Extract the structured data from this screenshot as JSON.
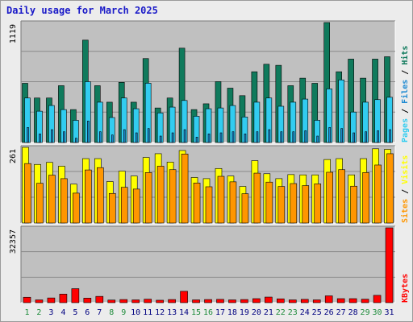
{
  "title": "Daily usage for March 2025",
  "colors": {
    "hits": "#0f7a5c",
    "files": "#32ccf0",
    "pages": "#1e8ad2",
    "visits": "#ffff00",
    "sites": "#ff9600",
    "kbytes": "#ff0000",
    "weekend_day": "#1f8c3c",
    "weekday": "#000080",
    "title": "#1a1ac8",
    "plot_bg": "#c0c0c0"
  },
  "chart_data": [
    {
      "type": "bar",
      "name": "hits-files-pages",
      "y_label": "1119",
      "legend": [
        "Pages",
        "Files",
        "Hits"
      ],
      "ylim": [
        0,
        1119
      ],
      "categories": [
        "1",
        "2",
        "3",
        "4",
        "5",
        "6",
        "7",
        "8",
        "9",
        "10",
        "11",
        "12",
        "13",
        "14",
        "15",
        "16",
        "17",
        "18",
        "19",
        "20",
        "21",
        "22",
        "23",
        "24",
        "25",
        "26",
        "27",
        "28",
        "29",
        "30",
        "31"
      ],
      "series": [
        {
          "name": "Hits",
          "values": [
            552,
            415,
            415,
            530,
            307,
            955,
            530,
            376,
            561,
            376,
            783,
            322,
            415,
            880,
            307,
            361,
            568,
            507,
            437,
            660,
            730,
            720,
            530,
            600,
            552,
            1119,
            660,
            778,
            600,
            778,
            800
          ]
        },
        {
          "name": "Files",
          "values": [
            415,
            292,
            345,
            307,
            207,
            567,
            376,
            233,
            415,
            315,
            553,
            276,
            330,
            392,
            245,
            315,
            322,
            345,
            238,
            376,
            415,
            338,
            376,
            405,
            207,
            500,
            584,
            284,
            376,
            400,
            422
          ]
        },
        {
          "name": "Pages",
          "values": [
            140,
            80,
            120,
            100,
            40,
            200,
            100,
            70,
            120,
            90,
            130,
            60,
            90,
            120,
            50,
            80,
            90,
            100,
            80,
            100,
            120,
            100,
            100,
            110,
            60,
            140,
            130,
            90,
            100,
            110,
            120
          ]
        }
      ]
    },
    {
      "type": "bar",
      "name": "visits-sites",
      "y_label": "261",
      "legend": [
        "Sites",
        "Visits"
      ],
      "ylim": [
        0,
        261
      ],
      "categories": [
        "1",
        "2",
        "3",
        "4",
        "5",
        "6",
        "7",
        "8",
        "9",
        "10",
        "11",
        "12",
        "13",
        "14",
        "15",
        "16",
        "17",
        "18",
        "19",
        "20",
        "21",
        "22",
        "23",
        "24",
        "25",
        "26",
        "27",
        "28",
        "29",
        "30",
        "31"
      ],
      "series": [
        {
          "name": "Visits",
          "values": [
            261,
            202,
            209,
            196,
            134,
            222,
            222,
            143,
            179,
            162,
            226,
            239,
            210,
            250,
            157,
            153,
            188,
            162,
            126,
            215,
            170,
            153,
            167,
            166,
            166,
            219,
            222,
            166,
            222,
            256,
            254
          ]
        },
        {
          "name": "Sites",
          "values": [
            205,
            137,
            165,
            153,
            103,
            183,
            191,
            102,
            123,
            117,
            174,
            196,
            184,
            238,
            138,
            125,
            161,
            142,
            101,
            172,
            141,
            126,
            136,
            129,
            135,
            175,
            184,
            127,
            174,
            200,
            239
          ]
        }
      ]
    },
    {
      "type": "bar",
      "name": "kbytes",
      "y_label": "32357",
      "legend": [
        "KBytes"
      ],
      "ylim": [
        0,
        32357
      ],
      "categories": [
        "1",
        "2",
        "3",
        "4",
        "5",
        "6",
        "7",
        "8",
        "9",
        "10",
        "11",
        "12",
        "13",
        "14",
        "15",
        "16",
        "17",
        "18",
        "19",
        "20",
        "21",
        "22",
        "23",
        "24",
        "25",
        "26",
        "27",
        "28",
        "29",
        "30",
        "31"
      ],
      "series": [
        {
          "name": "KBytes",
          "values": [
            2346,
            1212,
            2044,
            3710,
            6060,
            1970,
            2727,
            1136,
            1364,
            1212,
            1515,
            1061,
            1364,
            4924,
            1212,
            1364,
            1439,
            1212,
            1364,
            1742,
            2424,
            1666,
            1212,
            1439,
            1212,
            2954,
            1742,
            1742,
            1515,
            3181,
            32357
          ]
        }
      ]
    }
  ],
  "x_axis": {
    "labels": [
      "1",
      "2",
      "3",
      "4",
      "5",
      "6",
      "7",
      "8",
      "9",
      "10",
      "11",
      "12",
      "13",
      "14",
      "15",
      "16",
      "17",
      "18",
      "19",
      "20",
      "21",
      "22",
      "23",
      "24",
      "25",
      "26",
      "27",
      "28",
      "29",
      "30",
      "31"
    ],
    "weekend_days": [
      "1",
      "2",
      "8",
      "9",
      "15",
      "16",
      "22",
      "23",
      "29",
      "30"
    ]
  }
}
